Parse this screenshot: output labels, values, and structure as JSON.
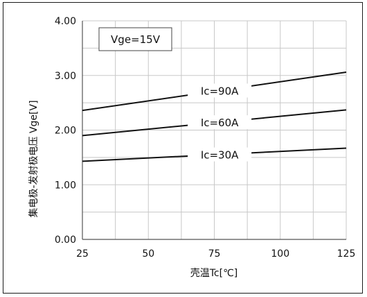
{
  "chart_data": {
    "type": "line",
    "xlabel": "壳温Tc[℃]",
    "ylabel": "集电极-发射极电压 Vge[V]",
    "xlim": [
      25,
      125
    ],
    "ylim": [
      0,
      4
    ],
    "x_ticks": [
      "25",
      "50",
      "75",
      "100",
      "125"
    ],
    "y_ticks": [
      "0.00",
      "1.00",
      "2.00",
      "3.00",
      "4.00"
    ],
    "grid": true,
    "legend_box": "Vge=15V",
    "series": [
      {
        "name": "Ic=90A",
        "x": [
          25,
          125
        ],
        "y": [
          2.36,
          3.06
        ]
      },
      {
        "name": "Ic=60A",
        "x": [
          25,
          125
        ],
        "y": [
          1.9,
          2.37
        ]
      },
      {
        "name": "Ic=30A",
        "x": [
          25,
          125
        ],
        "y": [
          1.43,
          1.67
        ]
      }
    ],
    "line_color": "#111111",
    "grid_color": "#c8c8c8"
  }
}
